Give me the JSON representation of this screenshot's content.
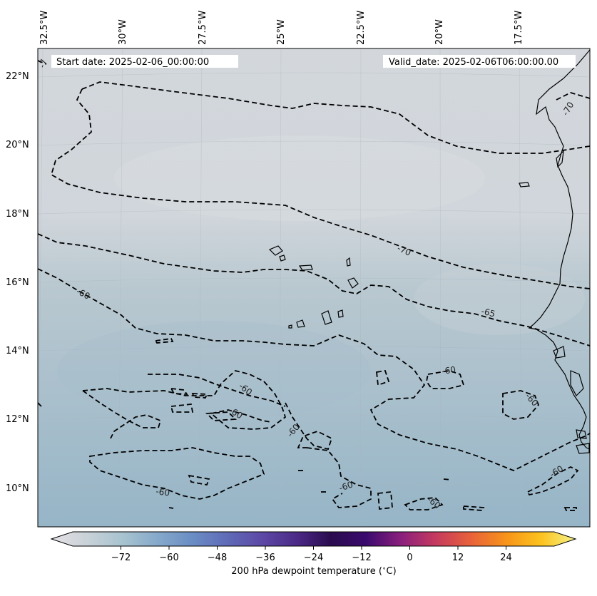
{
  "header": {
    "start_date": "Start date: 2025-02-06_00:00:00",
    "valid_date": "Valid_date: 2025-02-06T06:00:00.00"
  },
  "map": {
    "lon_labels": [
      "32.5°W",
      "30°W",
      "27.5°W",
      "25°W",
      "22.5°W",
      "20°W",
      "17.5°W"
    ],
    "lat_labels": [
      "22°N",
      "20°N",
      "18°N",
      "16°N",
      "14°N",
      "12°N",
      "10°N"
    ],
    "contour_labels": [
      "-70",
      "-70",
      "-65",
      "-60",
      "-60",
      "-60",
      "-60",
      "-60",
      "-60",
      "-60",
      "-60",
      "-60",
      "-60",
      "-7"
    ],
    "field_colors": {
      "north": "#d3d7dc",
      "middle": "#b9c8d0",
      "south": "#96b5c7"
    }
  },
  "colorbar": {
    "label": "200 hPa dewpoint temperature ($^\\circ$C)",
    "ticks": [
      "-72",
      "-60",
      "-48",
      "-36",
      "-24",
      "-12",
      "0",
      "12",
      "24"
    ],
    "min": -84,
    "max": 36,
    "stops": [
      "#e6e1e6",
      "#c9d2d8",
      "#a9c4d0",
      "#87aacb",
      "#6b8ec4",
      "#5f6cb8",
      "#5d4aa6",
      "#4c2a88",
      "#2b0b4e",
      "#3a0a6e",
      "#8a1f7d",
      "#c53a5e",
      "#e8613a",
      "#f7931a",
      "#fcc21d",
      "#f5f28a"
    ]
  }
}
